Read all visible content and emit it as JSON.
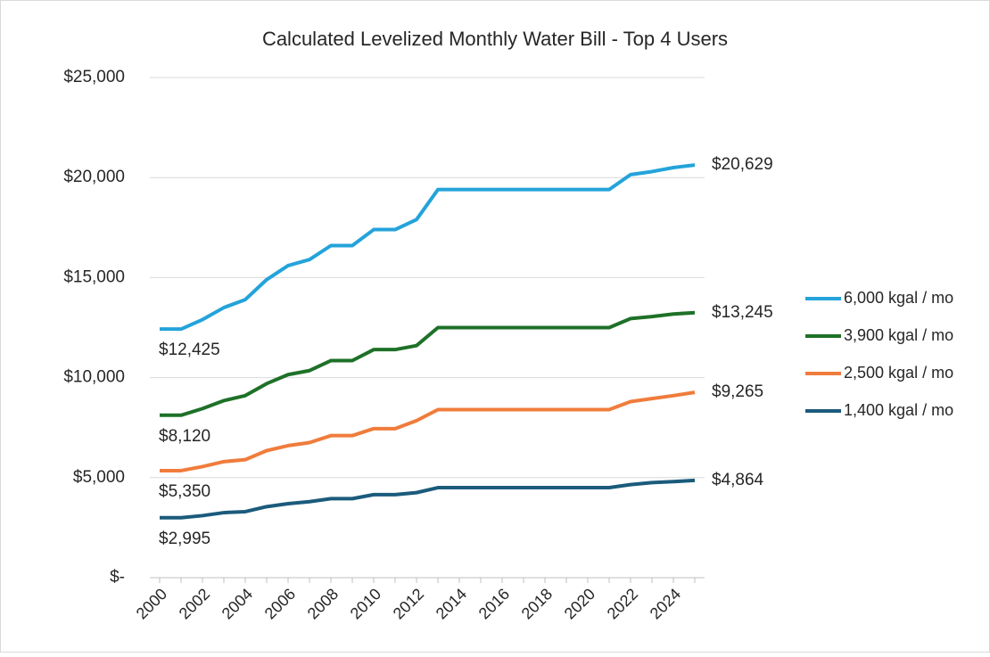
{
  "chart_data": {
    "type": "line",
    "title": "Calculated Levelized Monthly Water Bill - Top 4 Users",
    "categories": [
      "2000",
      null,
      "2002",
      null,
      "2004",
      null,
      "2006",
      null,
      "2008",
      null,
      "2010",
      null,
      "2012",
      null,
      "2014",
      null,
      "2016",
      null,
      "2018",
      null,
      "2020",
      null,
      "2022",
      null,
      "2024",
      null
    ],
    "series": [
      {
        "name": "6,000 kgal / mo",
        "color": "#24a3da",
        "values": [
          12425,
          12425,
          12900,
          13500,
          13900,
          14900,
          15600,
          15900,
          16600,
          16600,
          17400,
          17400,
          17900,
          19400,
          19400,
          19400,
          19400,
          19400,
          19400,
          19400,
          19400,
          19400,
          20150,
          20300,
          20500,
          20629
        ],
        "value_labels": [
          "$12,425",
          null,
          null,
          null,
          null,
          null,
          null,
          null,
          null,
          null,
          null,
          null,
          null,
          null,
          null,
          null,
          null,
          null,
          null,
          null,
          null,
          null,
          null,
          null,
          null,
          "$20,629"
        ]
      },
      {
        "name": "3,900 kgal / mo",
        "color": "#1e7128",
        "values": [
          8120,
          8120,
          8450,
          8850,
          9100,
          9700,
          10150,
          10350,
          10850,
          10850,
          11400,
          11400,
          11600,
          12500,
          12500,
          12500,
          12500,
          12500,
          12500,
          12500,
          12500,
          12500,
          12950,
          13050,
          13180,
          13245
        ],
        "value_labels": [
          "$8,120",
          null,
          null,
          null,
          null,
          null,
          null,
          null,
          null,
          null,
          null,
          null,
          null,
          null,
          null,
          null,
          null,
          null,
          null,
          null,
          null,
          null,
          null,
          null,
          null,
          "$13,245"
        ]
      },
      {
        "name": "2,500 kgal / mo",
        "color": "#f07c3c",
        "values": [
          5350,
          5350,
          5550,
          5800,
          5900,
          6350,
          6600,
          6750,
          7100,
          7100,
          7450,
          7450,
          7850,
          8400,
          8400,
          8400,
          8400,
          8400,
          8400,
          8400,
          8400,
          8400,
          8800,
          8950,
          9100,
          9265
        ],
        "value_labels": [
          "$5,350",
          null,
          null,
          null,
          null,
          null,
          null,
          null,
          null,
          null,
          null,
          null,
          null,
          null,
          null,
          null,
          null,
          null,
          null,
          null,
          null,
          null,
          null,
          null,
          null,
          "$9,265"
        ]
      },
      {
        "name": "1,400 kgal / mo",
        "color": "#1b5b7c",
        "values": [
          2995,
          2995,
          3100,
          3250,
          3300,
          3550,
          3700,
          3800,
          3950,
          3950,
          4150,
          4150,
          4250,
          4500,
          4500,
          4500,
          4500,
          4500,
          4500,
          4500,
          4500,
          4500,
          4650,
          4750,
          4800,
          4864
        ],
        "value_labels": [
          "$2,995",
          null,
          null,
          null,
          null,
          null,
          null,
          null,
          null,
          null,
          null,
          null,
          null,
          null,
          null,
          null,
          null,
          null,
          null,
          null,
          null,
          null,
          null,
          null,
          null,
          "$4,864"
        ]
      }
    ],
    "ylim": [
      0,
      25000
    ],
    "yticks": [
      {
        "value": 0,
        "label": "$-"
      },
      {
        "value": 5000,
        "label": "$5,000"
      },
      {
        "value": 10000,
        "label": "$10,000"
      },
      {
        "value": 15000,
        "label": "$15,000"
      },
      {
        "value": 20000,
        "label": "$20,000"
      },
      {
        "value": 25000,
        "label": "$25,000"
      }
    ],
    "grid": true,
    "legend": "right"
  }
}
